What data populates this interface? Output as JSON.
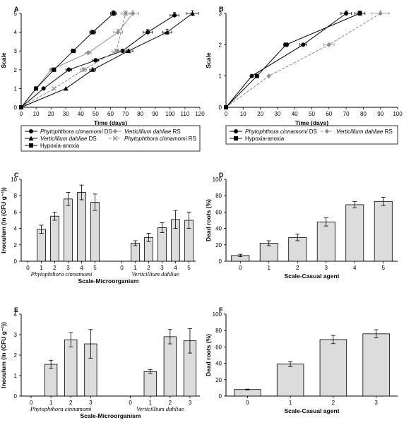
{
  "chart_data": [
    {
      "id": "A",
      "panel_label": "A",
      "type": "line",
      "xlabel": "Time (days)",
      "ylabel": "Scale",
      "xlim": [
        0,
        120
      ],
      "ylim": [
        0,
        5
      ],
      "xticks": [
        "0",
        "10",
        "20",
        "30",
        "40",
        "50",
        "60",
        "70",
        "80",
        "90",
        "100",
        "110",
        "120"
      ],
      "yticks": [
        "0",
        "1",
        "2",
        "3",
        "4",
        "5"
      ],
      "series": [
        {
          "name": "Phytophthora cinnamomi",
          "suffix": " DS",
          "marker": "circle",
          "color": "#000000",
          "dash": "",
          "x": [
            0,
            15,
            32,
            50,
            68,
            85,
            103
          ],
          "y": [
            0,
            1,
            2,
            2.5,
            3,
            4,
            4.9
          ],
          "xerr": [
            0,
            0,
            2,
            2,
            3,
            3,
            3
          ],
          "yerr": [
            0,
            0,
            0.1,
            0.1,
            0.1,
            0.15,
            0.15
          ]
        },
        {
          "name": "Verticillium dahliae",
          "suffix": " RS",
          "marker": "diamond",
          "color": "#8c8c8c",
          "dash": "",
          "x": [
            0,
            20,
            45,
            65,
            75
          ],
          "y": [
            0,
            2,
            2.9,
            4,
            5
          ],
          "xerr": [
            0,
            0,
            2,
            3,
            4
          ],
          "yerr": [
            0,
            0,
            0.1,
            0.15,
            0.15
          ]
        },
        {
          "name": "Verticillium dahliae",
          "suffix": " DS",
          "marker": "triangle",
          "color": "#000000",
          "dash": "",
          "x": [
            0,
            30,
            48,
            72,
            98,
            115
          ],
          "y": [
            0,
            1,
            2,
            3,
            4,
            5
          ],
          "xerr": [
            0,
            0,
            2,
            3,
            3,
            4
          ],
          "yerr": [
            0,
            0,
            0.1,
            0.1,
            0.15,
            0.15
          ]
        },
        {
          "name": "Phytophthora cinnamomi",
          "suffix": " RS",
          "marker": "x",
          "color": "#8c8c8c",
          "dash": "4,2",
          "x": [
            0,
            22,
            42,
            64,
            70
          ],
          "y": [
            0,
            1,
            2,
            3,
            5
          ],
          "xerr": [
            0,
            0,
            2,
            3,
            3
          ],
          "yerr": [
            0,
            0,
            0.1,
            0.1,
            0.15
          ]
        },
        {
          "name": "Hypoxia-anoxia",
          "suffix": "",
          "marker": "square",
          "color": "#000000",
          "dash": "",
          "x": [
            0,
            10,
            22,
            35,
            48,
            62
          ],
          "y": [
            0,
            1,
            2,
            3,
            4,
            5
          ],
          "xerr": [
            0,
            0,
            0,
            1.5,
            2,
            2
          ],
          "yerr": [
            0,
            0,
            0.1,
            0.1,
            0.1,
            0.15
          ]
        }
      ]
    },
    {
      "id": "B",
      "panel_label": "B",
      "type": "line",
      "xlabel": "Time (days)",
      "ylabel": "Scale",
      "xlim": [
        0,
        100
      ],
      "ylim": [
        0,
        3
      ],
      "xticks": [
        "0",
        "10",
        "20",
        "30",
        "40",
        "50",
        "60",
        "70",
        "80",
        "90",
        "100"
      ],
      "yticks": [
        "0",
        "1",
        "2",
        "3"
      ],
      "series": [
        {
          "name": "Phytophthora cinnamomi",
          "suffix": " DS",
          "marker": "circle",
          "color": "#000000",
          "dash": "",
          "x": [
            0,
            15,
            45,
            70
          ],
          "y": [
            0,
            1,
            2,
            3
          ],
          "xerr": [
            0,
            0,
            2,
            3
          ],
          "yerr": [
            0,
            0,
            0.05,
            0.08
          ]
        },
        {
          "name": "Verticillium dahliae",
          "suffix": " RS",
          "marker": "diamond",
          "color": "#8c8c8c",
          "dash": "4,2",
          "x": [
            0,
            25,
            60,
            90
          ],
          "y": [
            0,
            1,
            2,
            3
          ],
          "xerr": [
            0,
            0,
            3,
            5
          ],
          "yerr": [
            0,
            0,
            0.05,
            0.08
          ]
        },
        {
          "name": "Hypoxia-anoxia",
          "suffix": "",
          "marker": "square",
          "color": "#000000",
          "dash": "",
          "x": [
            0,
            18,
            35,
            78
          ],
          "y": [
            0,
            1,
            2,
            3
          ],
          "xerr": [
            0,
            0,
            1.5,
            3
          ],
          "yerr": [
            0,
            0,
            0.05,
            0.08
          ]
        }
      ]
    },
    {
      "id": "C",
      "panel_label": "C",
      "type": "bar",
      "xlabel": "Scale-Microorganism",
      "ylabel": "Inoculum (ln (CFU g⁻¹))",
      "ylim": [
        0,
        10
      ],
      "yticks": [
        "0",
        "2",
        "4",
        "6",
        "8",
        "10"
      ],
      "groups": [
        {
          "name": "Phytophthora cinnamomi",
          "categories": [
            "0",
            "1",
            "2",
            "3",
            "4",
            "5"
          ],
          "values": [
            0,
            3.9,
            5.5,
            7.6,
            8.4,
            7.2
          ],
          "errors": [
            0,
            0.5,
            0.5,
            0.8,
            0.9,
            1.0
          ]
        },
        {
          "name": "Verticillium dahliae",
          "categories": [
            "0",
            "1",
            "2",
            "3",
            "4",
            "5"
          ],
          "values": [
            0,
            2.2,
            2.9,
            4.1,
            5.1,
            5.0
          ],
          "errors": [
            0,
            0.3,
            0.5,
            0.6,
            1.1,
            1.0
          ]
        }
      ]
    },
    {
      "id": "D",
      "panel_label": "D",
      "type": "bar",
      "xlabel": "Scale-Casual agent",
      "ylabel": "Dead roots (%)",
      "ylim": [
        0,
        100
      ],
      "yticks": [
        "0",
        "20",
        "40",
        "60",
        "80",
        "100"
      ],
      "categories": [
        "0",
        "1",
        "2",
        "3",
        "4",
        "5"
      ],
      "values": [
        7,
        22,
        29,
        48,
        69,
        73
      ],
      "errors": [
        1.5,
        3,
        4,
        5,
        4,
        5
      ]
    },
    {
      "id": "E",
      "panel_label": "E",
      "type": "bar",
      "xlabel": "Scale-Microorganism",
      "ylabel": "Inoculum (ln (CFU g⁻¹))",
      "ylim": [
        0,
        4
      ],
      "yticks": [
        "0",
        "1",
        "2",
        "3",
        "4"
      ],
      "groups": [
        {
          "name": "Phytophthora cinnamomi",
          "categories": [
            "0",
            "1",
            "2",
            "3"
          ],
          "values": [
            0,
            1.55,
            2.75,
            2.55
          ],
          "errors": [
            0,
            0.2,
            0.35,
            0.7
          ]
        },
        {
          "name": "Verticillium dahliae",
          "categories": [
            "0",
            "1",
            "2",
            "3"
          ],
          "values": [
            0,
            1.2,
            2.9,
            2.7
          ],
          "errors": [
            0,
            0.1,
            0.35,
            0.6
          ]
        }
      ]
    },
    {
      "id": "F",
      "panel_label": "F",
      "type": "bar",
      "xlabel": "Scale-Casual agent",
      "ylabel": "Dead roots (%)",
      "ylim": [
        0,
        100
      ],
      "yticks": [
        "0",
        "20",
        "40",
        "60",
        "80",
        "100"
      ],
      "categories": [
        "0",
        "1",
        "2",
        "3"
      ],
      "values": [
        8,
        39,
        69,
        76
      ],
      "errors": [
        0.5,
        3,
        5,
        5
      ]
    }
  ]
}
